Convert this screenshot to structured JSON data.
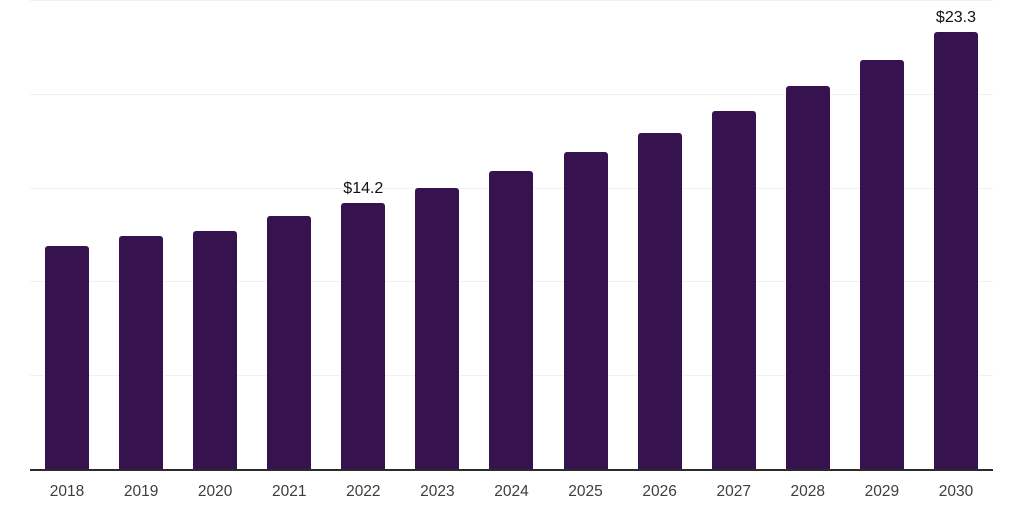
{
  "chart_data": {
    "type": "bar",
    "categories": [
      "2018",
      "2019",
      "2020",
      "2021",
      "2022",
      "2023",
      "2024",
      "2025",
      "2026",
      "2027",
      "2028",
      "2029",
      "2030"
    ],
    "values": [
      11.9,
      12.4,
      12.7,
      13.5,
      14.2,
      15.0,
      15.9,
      16.9,
      17.9,
      19.1,
      20.4,
      21.8,
      23.3
    ],
    "data_labels": [
      {
        "index": 4,
        "text": "$14.2"
      },
      {
        "index": 12,
        "text": "$23.3"
      }
    ],
    "title": "",
    "xlabel": "",
    "ylabel": "",
    "ylim": [
      0,
      25
    ],
    "grid": true,
    "gridline_values": [
      5,
      10,
      15,
      20,
      25
    ],
    "legend": "none",
    "colors": {
      "bar": "#36124E",
      "axis_line": "#2b2b2b",
      "gridline": "#f1f1f1",
      "data_label": "#111111",
      "tick_label": "#3d3d3d",
      "background": "#ffffff"
    }
  }
}
